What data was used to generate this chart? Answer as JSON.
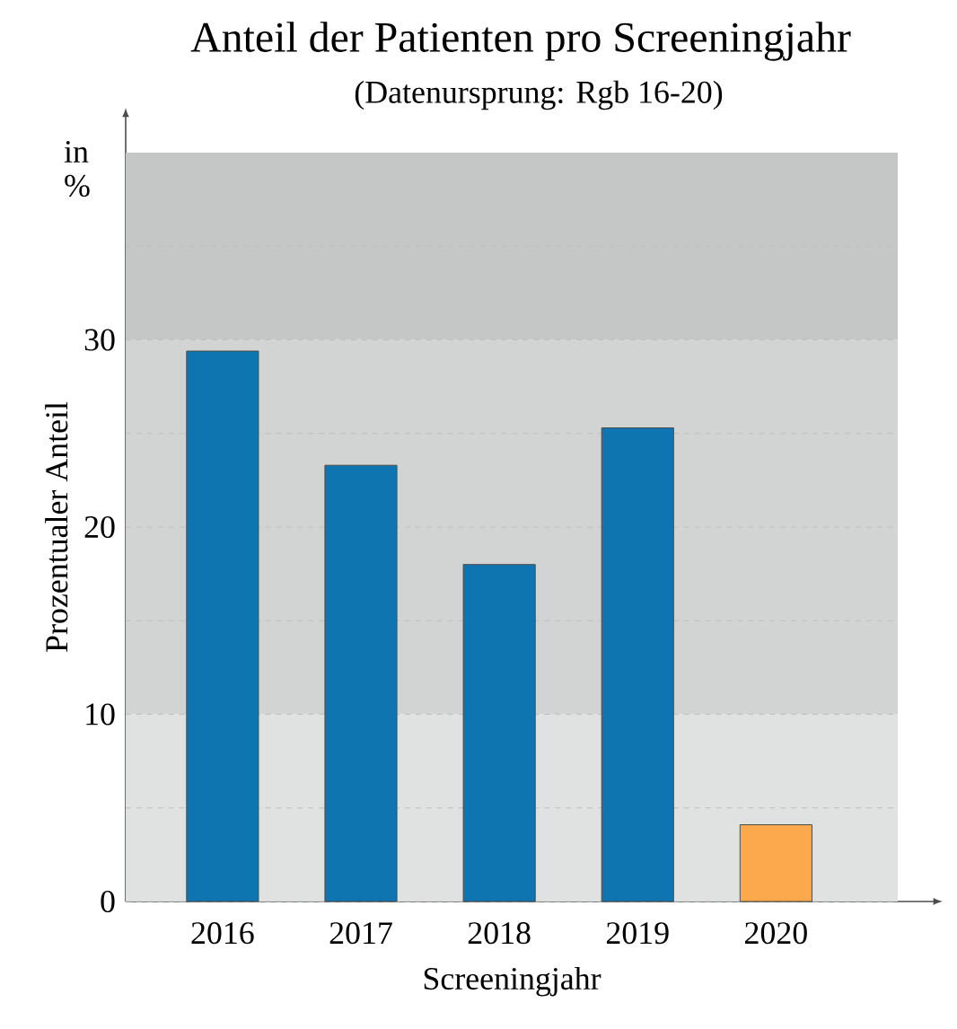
{
  "chart_data": {
    "type": "bar",
    "title": "Anteil der Patienten pro Screeningjahr",
    "subtitle": "(Datenursprung: Rgb 16-20)",
    "xlabel": "Screeningjahr",
    "ylabel": "Prozentualer Anteil",
    "annotations": [
      "in %"
    ],
    "categories": [
      "2016",
      "2017",
      "2018",
      "2019",
      "2020"
    ],
    "values": [
      29.4,
      23.3,
      18.0,
      25.3,
      4.1
    ],
    "colors": [
      "#0f75b0",
      "#0f75b0",
      "#0f75b0",
      "#0f75b0",
      "#fca84c"
    ],
    "ylim": [
      0,
      40
    ],
    "yticks": [
      0,
      {
        "value": 5,
        "label": null
      },
      10,
      {
        "value": 15,
        "label": null
      },
      20,
      {
        "value": 25,
        "label": null
      },
      30,
      {
        "value": 35,
        "label": null
      }
    ],
    "bands": [
      {
        "axis": "y",
        "from": 0,
        "to": 10,
        "color": "#e0e1e1"
      },
      {
        "axis": "y",
        "from": 10,
        "to": 30,
        "color": "#d2d3d3"
      },
      {
        "axis": "y",
        "from": 30,
        "to": 40,
        "color": "#c5c6c6"
      }
    ],
    "grid": "y"
  }
}
